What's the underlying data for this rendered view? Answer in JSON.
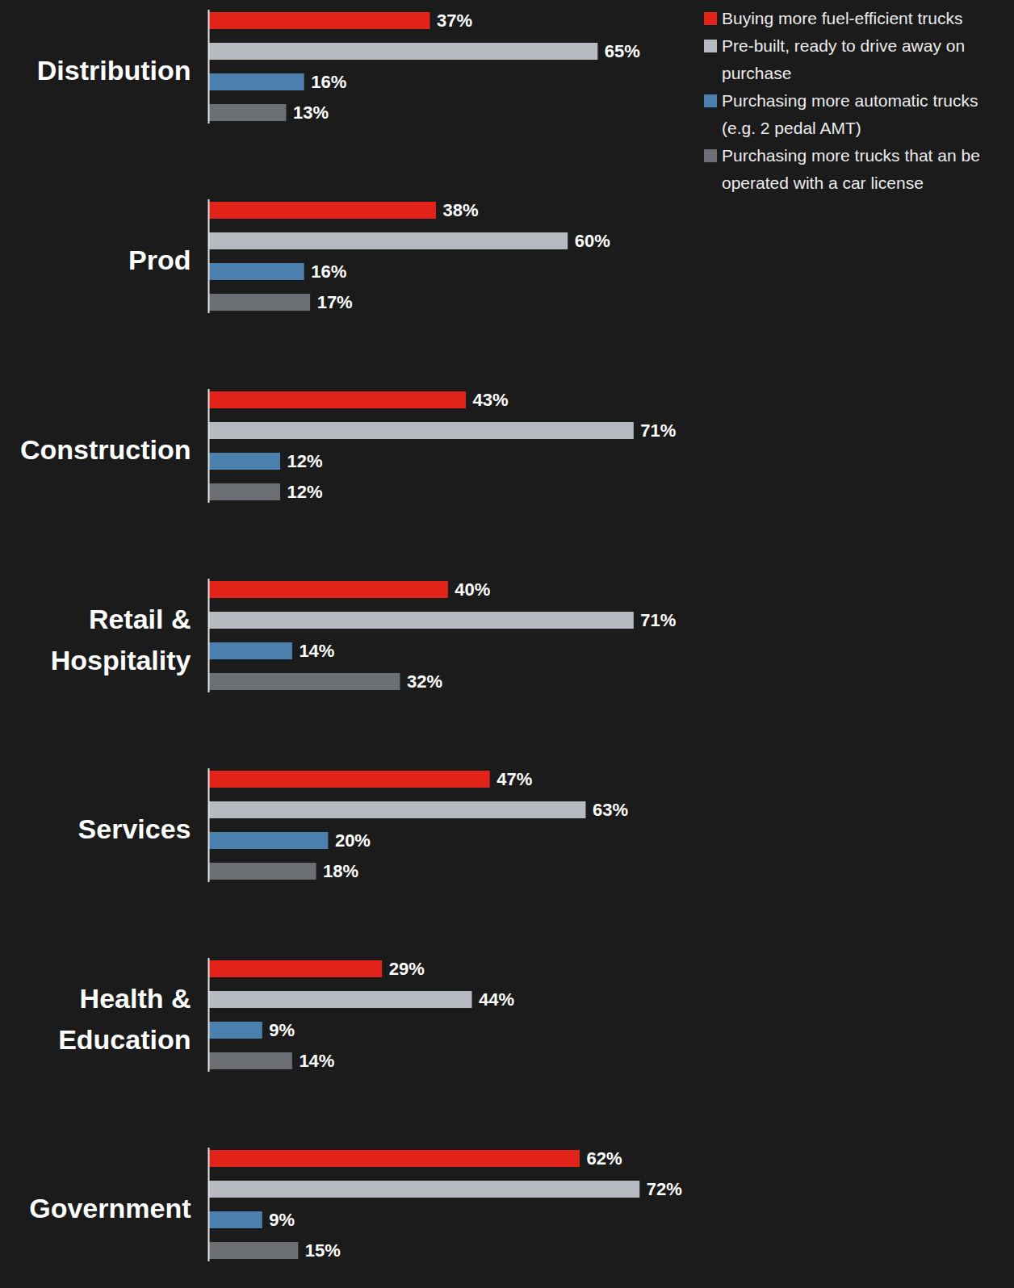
{
  "chart_data": {
    "type": "bar",
    "orientation": "horizontal",
    "categories": [
      "Distribution",
      "Prod",
      "Construction",
      "Retail & Hospitality",
      "Services",
      "Health & Education",
      "Government"
    ],
    "series": [
      {
        "name": "Buying more fuel-efficient trucks",
        "color": "#e2231a",
        "values": [
          37,
          38,
          43,
          40,
          47,
          29,
          62
        ],
        "value_labels": [
          "37%",
          "38%",
          "43%",
          "40%",
          "47%",
          "29%",
          "62%"
        ]
      },
      {
        "name": "Pre-built, ready to drive away on purchase",
        "color": "#b7bac0",
        "values": [
          65,
          60,
          71,
          71,
          63,
          44,
          72
        ],
        "value_labels": [
          "65%",
          "60%",
          "71%",
          "71%",
          "63%",
          "44%",
          "72%"
        ]
      },
      {
        "name": "Purchasing more automatic trucks (e.g. 2 pedal AMT)",
        "color": "#4a7fae",
        "values": [
          16,
          16,
          12,
          14,
          20,
          9,
          9
        ],
        "value_labels": [
          "16%",
          "16%",
          "12%",
          "14%",
          "20%",
          "9%",
          "9%"
        ]
      },
      {
        "name": "Purchasing more trucks that an be operated with a car license",
        "color": "#6b6e73",
        "values": [
          13,
          17,
          12,
          32,
          18,
          14,
          15
        ],
        "value_labels": [
          "13%",
          "17%",
          "12%",
          "32%",
          "18%",
          "14%",
          "15%"
        ]
      }
    ],
    "xlim": [
      0,
      100
    ],
    "xticks": [],
    "data_labels": true,
    "tick_labels": "y",
    "legend": "top-right"
  }
}
